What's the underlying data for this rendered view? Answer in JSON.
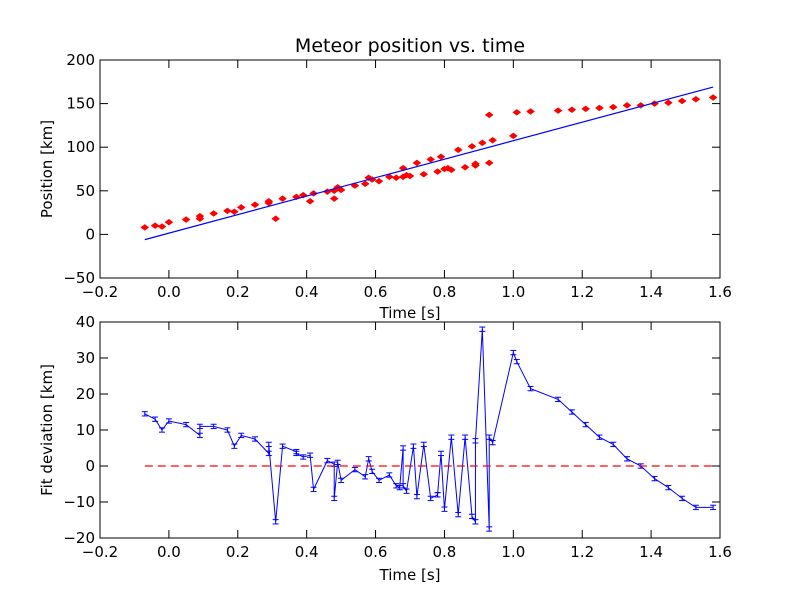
{
  "chart_data": [
    {
      "type": "scatter",
      "title": "Meteor position vs. time",
      "xlabel": "Time [s]",
      "ylabel": "Position [km]",
      "xlim": [
        -0.2,
        1.6
      ],
      "ylim": [
        -50,
        200
      ],
      "xticks": [
        "−0.2",
        "0.0",
        "0.2",
        "0.4",
        "0.6",
        "0.8",
        "1.0",
        "1.2",
        "1.4",
        "1.6"
      ],
      "yticks": [
        "−50",
        "0",
        "50",
        "100",
        "150",
        "200"
      ],
      "grid": false,
      "series": [
        {
          "kind": "points",
          "color": "#ff0000",
          "marker": "diamond",
          "x": [
            -0.07,
            -0.04,
            -0.02,
            0.0,
            0.05,
            0.09,
            0.09,
            0.13,
            0.17,
            0.19,
            0.21,
            0.25,
            0.29,
            0.29,
            0.31,
            0.33,
            0.37,
            0.39,
            0.41,
            0.42,
            0.46,
            0.48,
            0.48,
            0.49,
            0.5,
            0.54,
            0.57,
            0.59,
            0.58,
            0.61,
            0.64,
            0.66,
            0.68,
            0.68,
            0.69,
            0.7,
            0.72,
            0.74,
            0.76,
            0.78,
            0.79,
            0.8,
            0.81,
            0.82,
            0.84,
            0.86,
            0.88,
            0.89,
            0.89,
            0.91,
            0.93,
            0.93,
            0.94,
            1.0,
            1.01,
            1.05,
            1.13,
            1.17,
            1.21,
            1.25,
            1.29,
            1.33,
            1.37,
            1.41,
            1.45,
            1.49,
            1.53,
            1.58
          ],
          "y": [
            8,
            10,
            9,
            14,
            17,
            18,
            21,
            24,
            27,
            26,
            31,
            34,
            36,
            38,
            18,
            41,
            43,
            45,
            38,
            47,
            49,
            50,
            41,
            54,
            51,
            56,
            58,
            63,
            65,
            61,
            66,
            65,
            76,
            66,
            68,
            67,
            82,
            69,
            86,
            72,
            89,
            75,
            76,
            74,
            97,
            77,
            101,
            79,
            81,
            105,
            82,
            137,
            108,
            113,
            140,
            141,
            142,
            143,
            144,
            145,
            146,
            148,
            148,
            150,
            151,
            153,
            155,
            157
          ]
        },
        {
          "kind": "fit-line",
          "color": "#0000ff",
          "x": [
            -0.07,
            1.58
          ],
          "y": [
            -6,
            169
          ]
        }
      ]
    },
    {
      "type": "line",
      "title": "",
      "xlabel": "Time [s]",
      "ylabel": "Fit deviation [km]",
      "xlim": [
        -0.2,
        1.6
      ],
      "ylim": [
        -20,
        40
      ],
      "xticks": [
        "−0.2",
        "0.0",
        "0.2",
        "0.4",
        "0.6",
        "0.8",
        "1.0",
        "1.2",
        "1.4",
        "1.6"
      ],
      "yticks": [
        "−20",
        "−10",
        "0",
        "10",
        "20",
        "30",
        "40"
      ],
      "grid": false,
      "series": [
        {
          "kind": "errorbar-line",
          "color": "#0000ff",
          "x": [
            -0.07,
            -0.04,
            -0.02,
            0.0,
            0.05,
            0.09,
            0.09,
            0.13,
            0.17,
            0.19,
            0.21,
            0.25,
            0.29,
            0.29,
            0.31,
            0.33,
            0.37,
            0.37,
            0.39,
            0.41,
            0.42,
            0.46,
            0.48,
            0.48,
            0.49,
            0.5,
            0.54,
            0.57,
            0.58,
            0.59,
            0.61,
            0.64,
            0.66,
            0.67,
            0.68,
            0.68,
            0.69,
            0.71,
            0.72,
            0.74,
            0.76,
            0.78,
            0.78,
            0.79,
            0.8,
            0.82,
            0.84,
            0.86,
            0.88,
            0.89,
            0.89,
            0.91,
            0.93,
            0.93,
            0.94,
            1.0,
            1.01,
            1.05,
            1.13,
            1.17,
            1.21,
            1.25,
            1.29,
            1.33,
            1.37,
            1.41,
            1.45,
            1.49,
            1.53,
            1.58
          ],
          "y": [
            14.5,
            13,
            10,
            12.5,
            11.5,
            8.5,
            11,
            11,
            10,
            5.5,
            8.5,
            7.5,
            3.5,
            6,
            -15.5,
            5.5,
            4,
            3.5,
            2.5,
            3,
            -6.5,
            1.5,
            0.5,
            -9,
            1,
            -4,
            -1,
            -3,
            2,
            -1.5,
            -4,
            -2.5,
            -5.5,
            -6,
            5,
            -5.5,
            -7,
            5.5,
            -8.5,
            6,
            -9,
            -8,
            -8,
            3.5,
            -12,
            8,
            -13.5,
            8,
            -14,
            -15.5,
            7,
            38,
            -17.5,
            8,
            6.5,
            31.5,
            29,
            21.5,
            18.5,
            15,
            11.5,
            8,
            6,
            2,
            0,
            -3.5,
            -6,
            -9,
            -11.5,
            -11.5
          ],
          "err": 0.6
        },
        {
          "kind": "zero-line",
          "color": "#ff0000",
          "style": "dashed",
          "x": [
            -0.07,
            1.58
          ],
          "y": [
            0,
            0
          ]
        }
      ]
    }
  ]
}
